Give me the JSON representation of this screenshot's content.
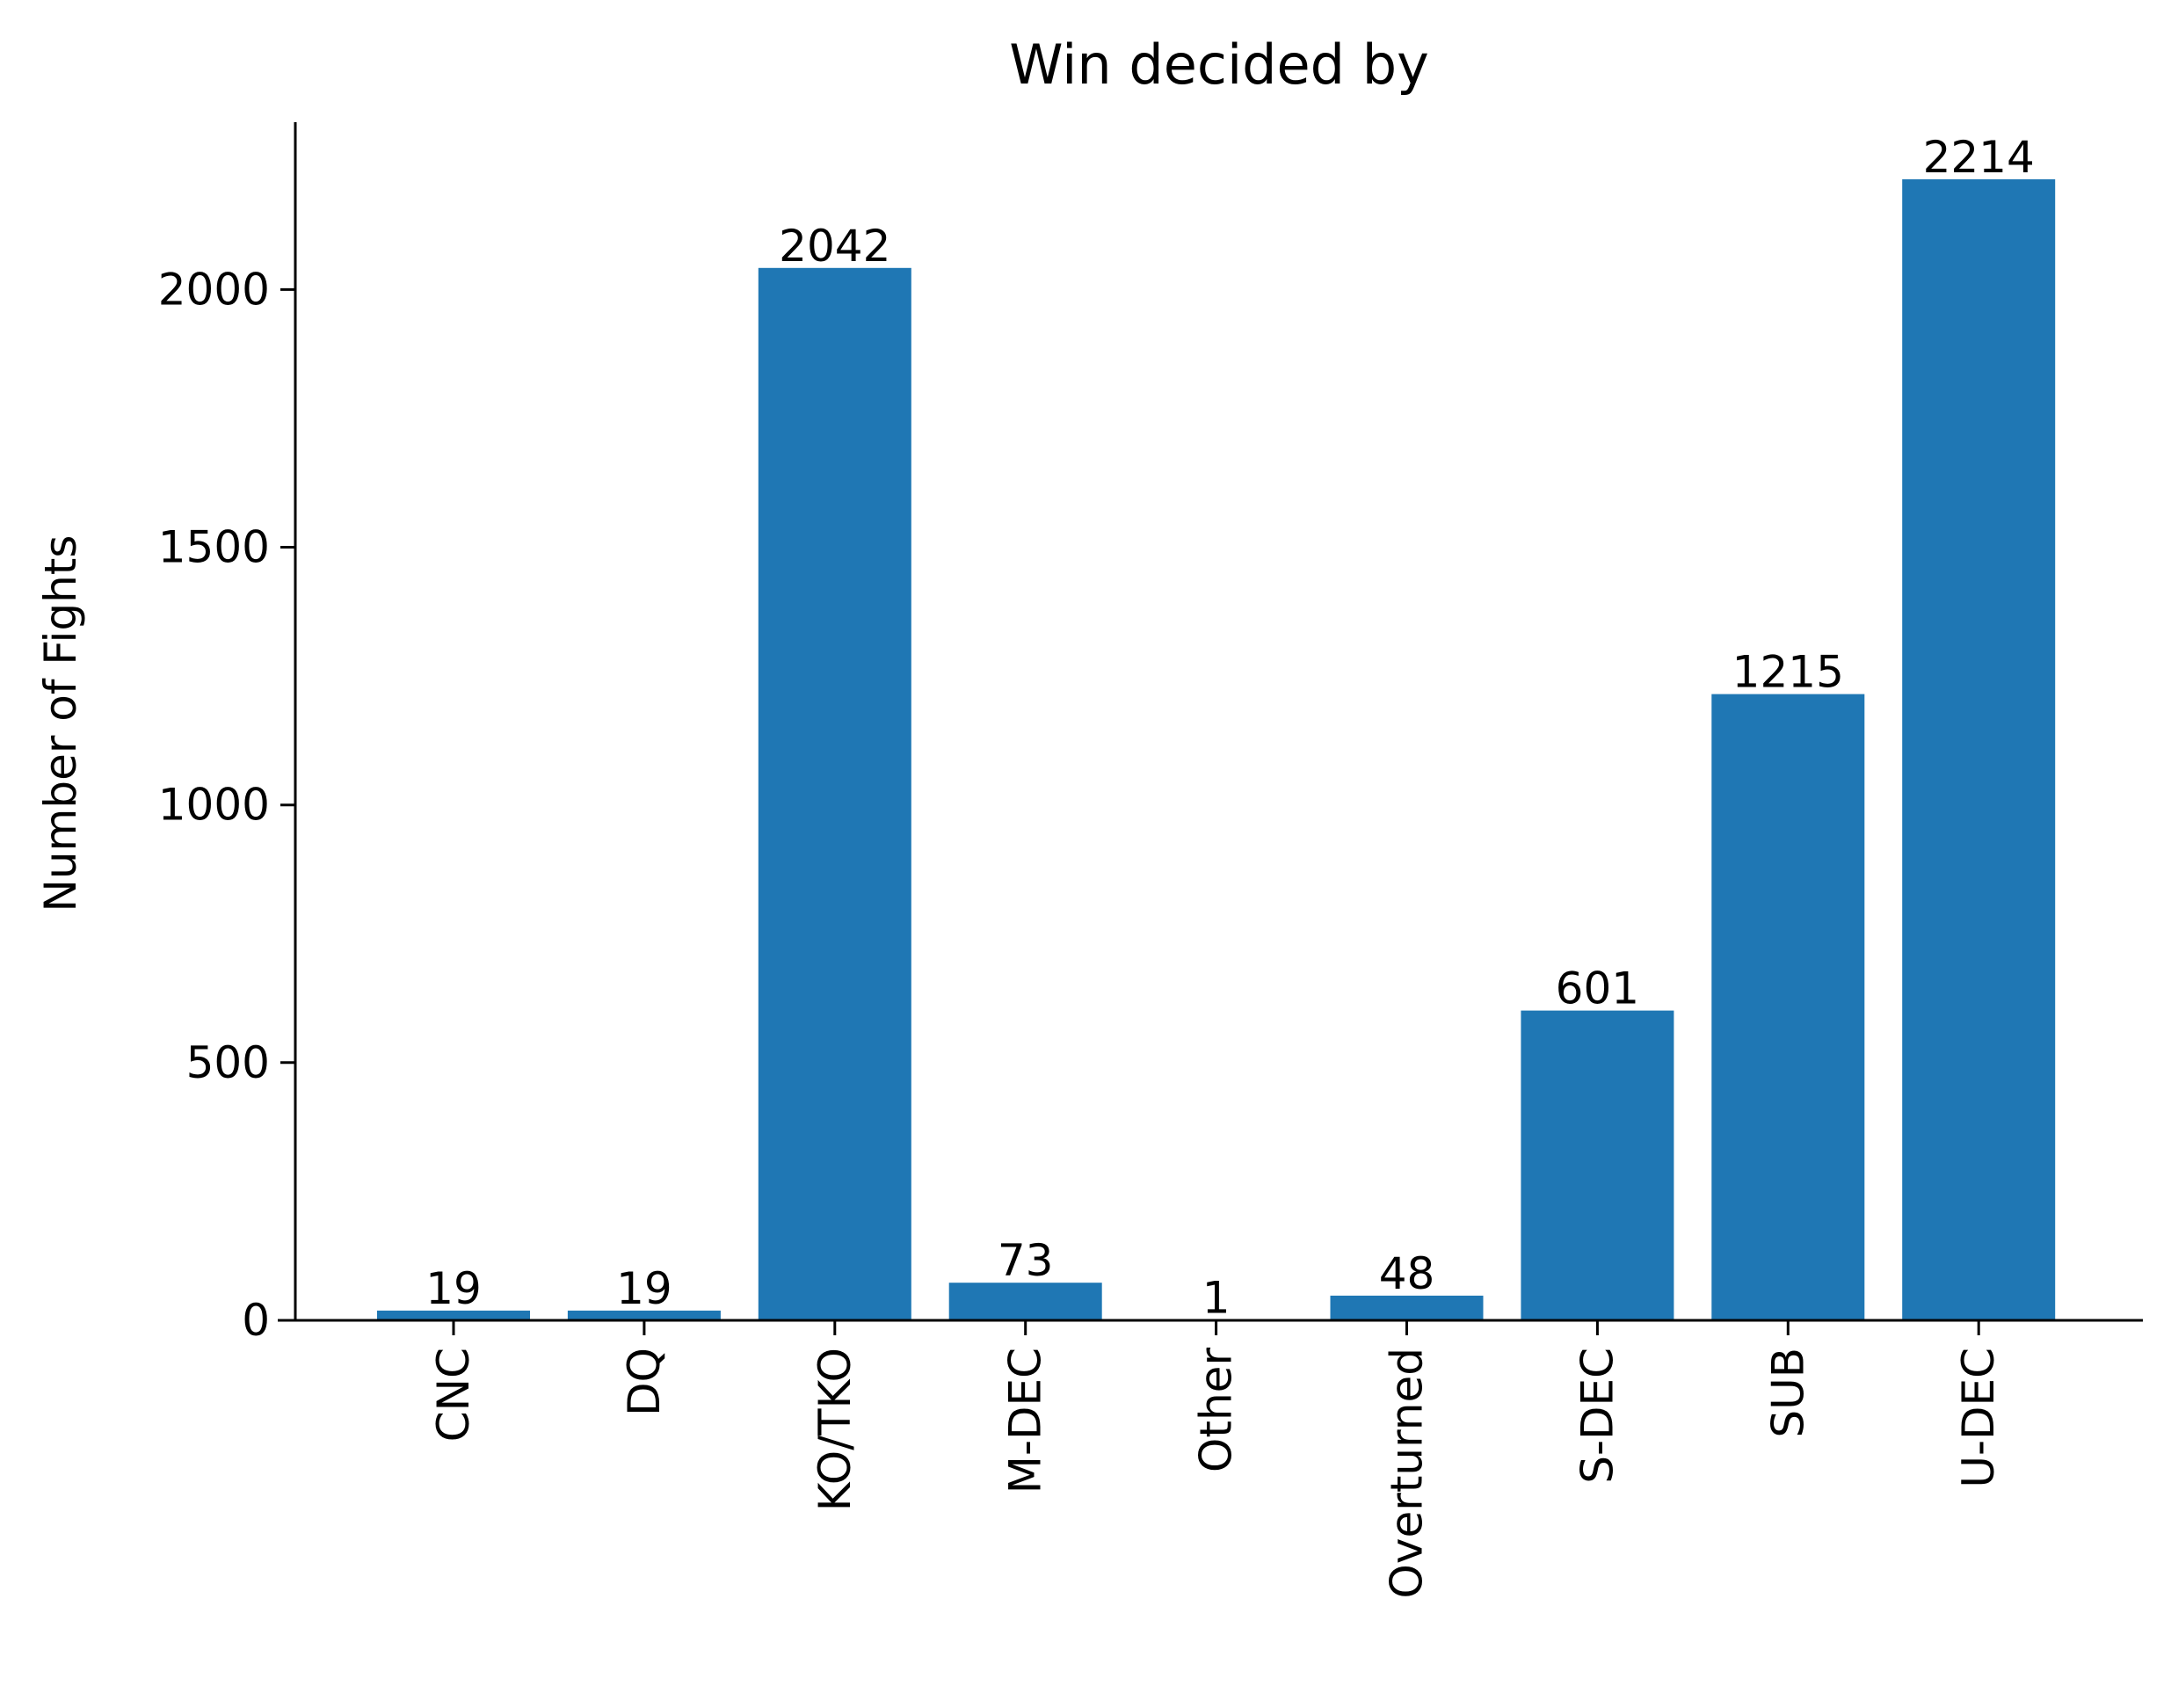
{
  "chart_data": {
    "type": "bar",
    "title": "Win decided by",
    "xlabel": "",
    "ylabel": "Number of Fights",
    "categories": [
      "CNC",
      "DQ",
      "KO/TKO",
      "M-DEC",
      "Other",
      "Overturned",
      "S-DEC",
      "SUB",
      "U-DEC"
    ],
    "values": [
      19,
      19,
      2042,
      73,
      1,
      48,
      601,
      1215,
      2214
    ],
    "data_labels": [
      "19",
      "19",
      "2042",
      "73",
      "1",
      "48",
      "601",
      "1215",
      "2214"
    ],
    "yticks": [
      0,
      500,
      1000,
      1500,
      2000
    ],
    "ytick_labels": [
      "0",
      "500",
      "1000",
      "1500",
      "2000"
    ],
    "ylim": [
      0,
      2324.7
    ],
    "grid": false,
    "bar_color": "#1f77b4"
  }
}
